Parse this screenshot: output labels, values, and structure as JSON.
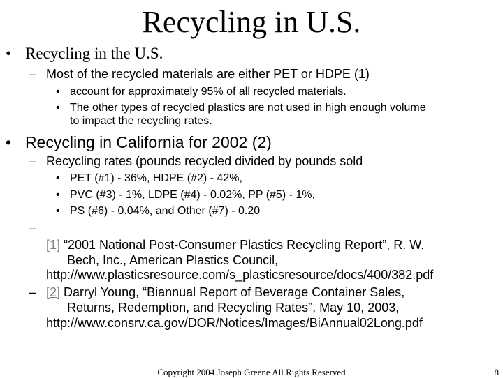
{
  "slide": {
    "title": "Recycling in U.S.",
    "bullet1": {
      "text": "Recycling in the U.S.",
      "sub": {
        "text": "Most of the recycled materials are either PET or HDPE (1)",
        "items": [
          "account for approximately 95% of all recycled materials.",
          "The other types of recycled plastics are not used in high enough volume",
          "to impact the recycling rates."
        ]
      }
    },
    "bullet2": {
      "text": "Recycling in California for 2002 (2)",
      "sub": {
        "text": "Recycling rates (pounds recycled divided by pounds sold",
        "items": [
          "PET (#1) - 36%, HDPE (#2) - 42%,",
          "PVC (#3) - 1%, LDPE (#4) - 0.02%, PP (#5) - 1%,",
          "PS (#6) - 0.04%, and Other (#7) - 0.20"
        ]
      }
    },
    "references": {
      "ref1_link": "[1]",
      "ref1_line1": " “2001 National Post-Consumer Plastics Recycling Report”, R. W.",
      "ref1_line2": "Bech, Inc., American Plastics Council,",
      "ref1_line3": "http://www.plasticsresource.com/s_plasticsresource/docs/400/382.pdf",
      "ref2_link": "[2]",
      "ref2_line1": " Darryl Young, “Biannual Report of Beverage Container Sales,",
      "ref2_line2": "Returns, Redemption, and Recycling Rates”, May 10, 2003,",
      "ref2_line3": "http://www.consrv.ca.gov/DOR/Notices/Images/BiAnnual02Long.pdf"
    },
    "glyphs": {
      "bullet": "•",
      "dash": "–"
    },
    "footer": "Copyright 2004 Joseph Greene All Rights Reserved",
    "page_number": "8"
  }
}
